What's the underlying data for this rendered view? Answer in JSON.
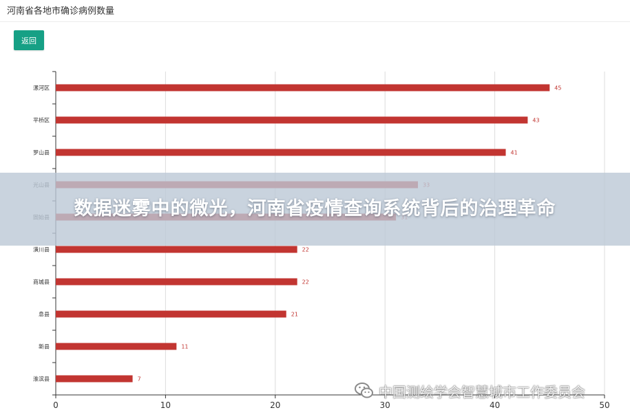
{
  "page": {
    "title": "河南省各地市确诊病例数量"
  },
  "toolbar": {
    "back_label": "返回"
  },
  "chart_data": {
    "type": "bar",
    "orientation": "horizontal",
    "categories": [
      "漯河区",
      "平桥区",
      "罗山县",
      "光山县",
      "固始县",
      "潢川县",
      "商城县",
      "息县",
      "新县",
      "淮滨县"
    ],
    "values": [
      45,
      43,
      41,
      33,
      31,
      22,
      22,
      21,
      11,
      7
    ],
    "x_ticks": [
      0,
      10,
      20,
      30,
      40,
      50
    ],
    "xlim": [
      0,
      50
    ],
    "bar_color": "#c23531",
    "label_color": "#c23531",
    "grid": true
  },
  "overlay": {
    "banner_text": "数据迷雾中的微光，河南省疫情查询系统背后的治理革命",
    "watermark_text": "中国测绘学会智慧城市工作委员会"
  }
}
